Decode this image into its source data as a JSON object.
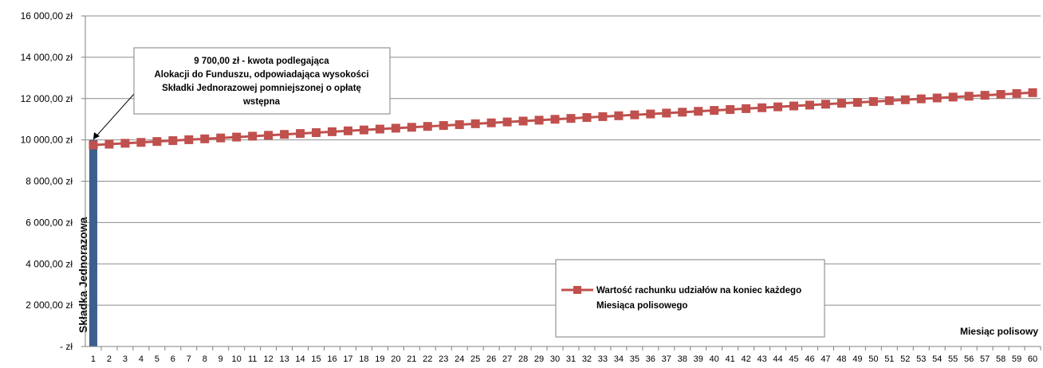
{
  "chart_data": {
    "type": "line",
    "title": "",
    "xlabel": "Miesiąc polisowy",
    "ylabel": "",
    "ylim": [
      0,
      16000
    ],
    "y_ticks": [
      {
        "value": 0,
        "label": "- zł"
      },
      {
        "value": 2000,
        "label": "2 000,00 zł"
      },
      {
        "value": 4000,
        "label": "4 000,00 zł"
      },
      {
        "value": 6000,
        "label": "6 000,00 zł"
      },
      {
        "value": 8000,
        "label": "8 000,00 zł"
      },
      {
        "value": 10000,
        "label": "10 000,00 zł"
      },
      {
        "value": 12000,
        "label": "12 000,00 zł"
      },
      {
        "value": 14000,
        "label": "14 000,00 zł"
      },
      {
        "value": 16000,
        "label": "16 000,00 zł"
      }
    ],
    "x": [
      1,
      2,
      3,
      4,
      5,
      6,
      7,
      8,
      9,
      10,
      11,
      12,
      13,
      14,
      15,
      16,
      17,
      18,
      19,
      20,
      21,
      22,
      23,
      24,
      25,
      26,
      27,
      28,
      29,
      30,
      31,
      32,
      33,
      34,
      35,
      36,
      37,
      38,
      39,
      40,
      41,
      42,
      43,
      44,
      45,
      46,
      47,
      48,
      49,
      50,
      51,
      52,
      53,
      54,
      55,
      56,
      57,
      58,
      59,
      60
    ],
    "grid": true,
    "legend_position": "bottom-center",
    "bar": {
      "label": "Składka Jednorazowa",
      "x": 1,
      "value": 10000,
      "color": "#3b5f8f"
    },
    "series": [
      {
        "name": "Wartość rachunku udziałów na koniec każdego Miesiąca polisowego",
        "color": "#c0504d",
        "marker": "square",
        "values": [
          9750,
          9793,
          9836,
          9879,
          9922,
          9965,
          10008,
          10051,
          10094,
          10137,
          10180,
          10223,
          10266,
          10309,
          10352,
          10395,
          10438,
          10481,
          10524,
          10567,
          10610,
          10653,
          10696,
          10739,
          10782,
          10825,
          10868,
          10911,
          10954,
          10997,
          11040,
          11083,
          11126,
          11169,
          11212,
          11255,
          11298,
          11341,
          11384,
          11427,
          11470,
          11513,
          11556,
          11599,
          11642,
          11685,
          11728,
          11771,
          11814,
          11857,
          11900,
          11943,
          11986,
          12029,
          12072,
          12115,
          12158,
          12201,
          12244,
          12287
        ]
      }
    ],
    "annotation": {
      "lines": [
        "9 700,00 zł - kwota podlegająca",
        "Alokacji do Funduszu, odpowiadająca wysokości",
        "Składki Jednorazowej pomniejszonej o opłatę",
        "wstępna"
      ]
    },
    "legend": {
      "lines": [
        "Wartość rachunku udziałów na koniec każdego",
        "Miesiąca polisowego"
      ]
    }
  }
}
